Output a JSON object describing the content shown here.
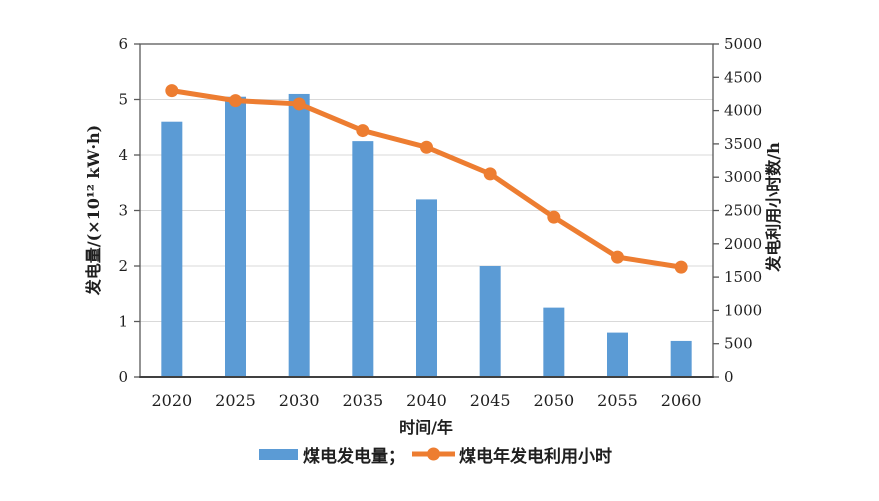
{
  "chart_data": {
    "type": "bar+line combo, dual y-axis",
    "categories": [
      "2020",
      "2025",
      "2030",
      "2035",
      "2040",
      "2045",
      "2050",
      "2055",
      "2060"
    ],
    "series": [
      {
        "name": "煤电发电量",
        "type": "bar",
        "axis": "left",
        "color": "#5b9bd5",
        "values": [
          4.6,
          5.05,
          5.1,
          4.25,
          3.2,
          2.0,
          1.25,
          0.8,
          0.65
        ]
      },
      {
        "name": "煤电年发电利用小时",
        "type": "line",
        "axis": "right",
        "color": "#ed7d31",
        "values": [
          4300,
          4150,
          4100,
          3700,
          3450,
          3050,
          2400,
          1800,
          1650
        ]
      }
    ],
    "left_axis": {
      "label": "发电量/(×10¹² kW·h)",
      "min": 0,
      "max": 6,
      "step": 1
    },
    "right_axis": {
      "label": "发电利用小时数/h",
      "min": 0,
      "max": 5000,
      "step": 500
    },
    "x_axis": {
      "label": "时间/年"
    },
    "grid": true,
    "legend_position": "bottom",
    "legend": [
      "煤电发电量；",
      "煤电年发电利用小时"
    ],
    "colors": {
      "grid": "#d9d9d9",
      "frame": "#595959",
      "axis_line": "#404040",
      "text": "#1f1f1f"
    }
  }
}
